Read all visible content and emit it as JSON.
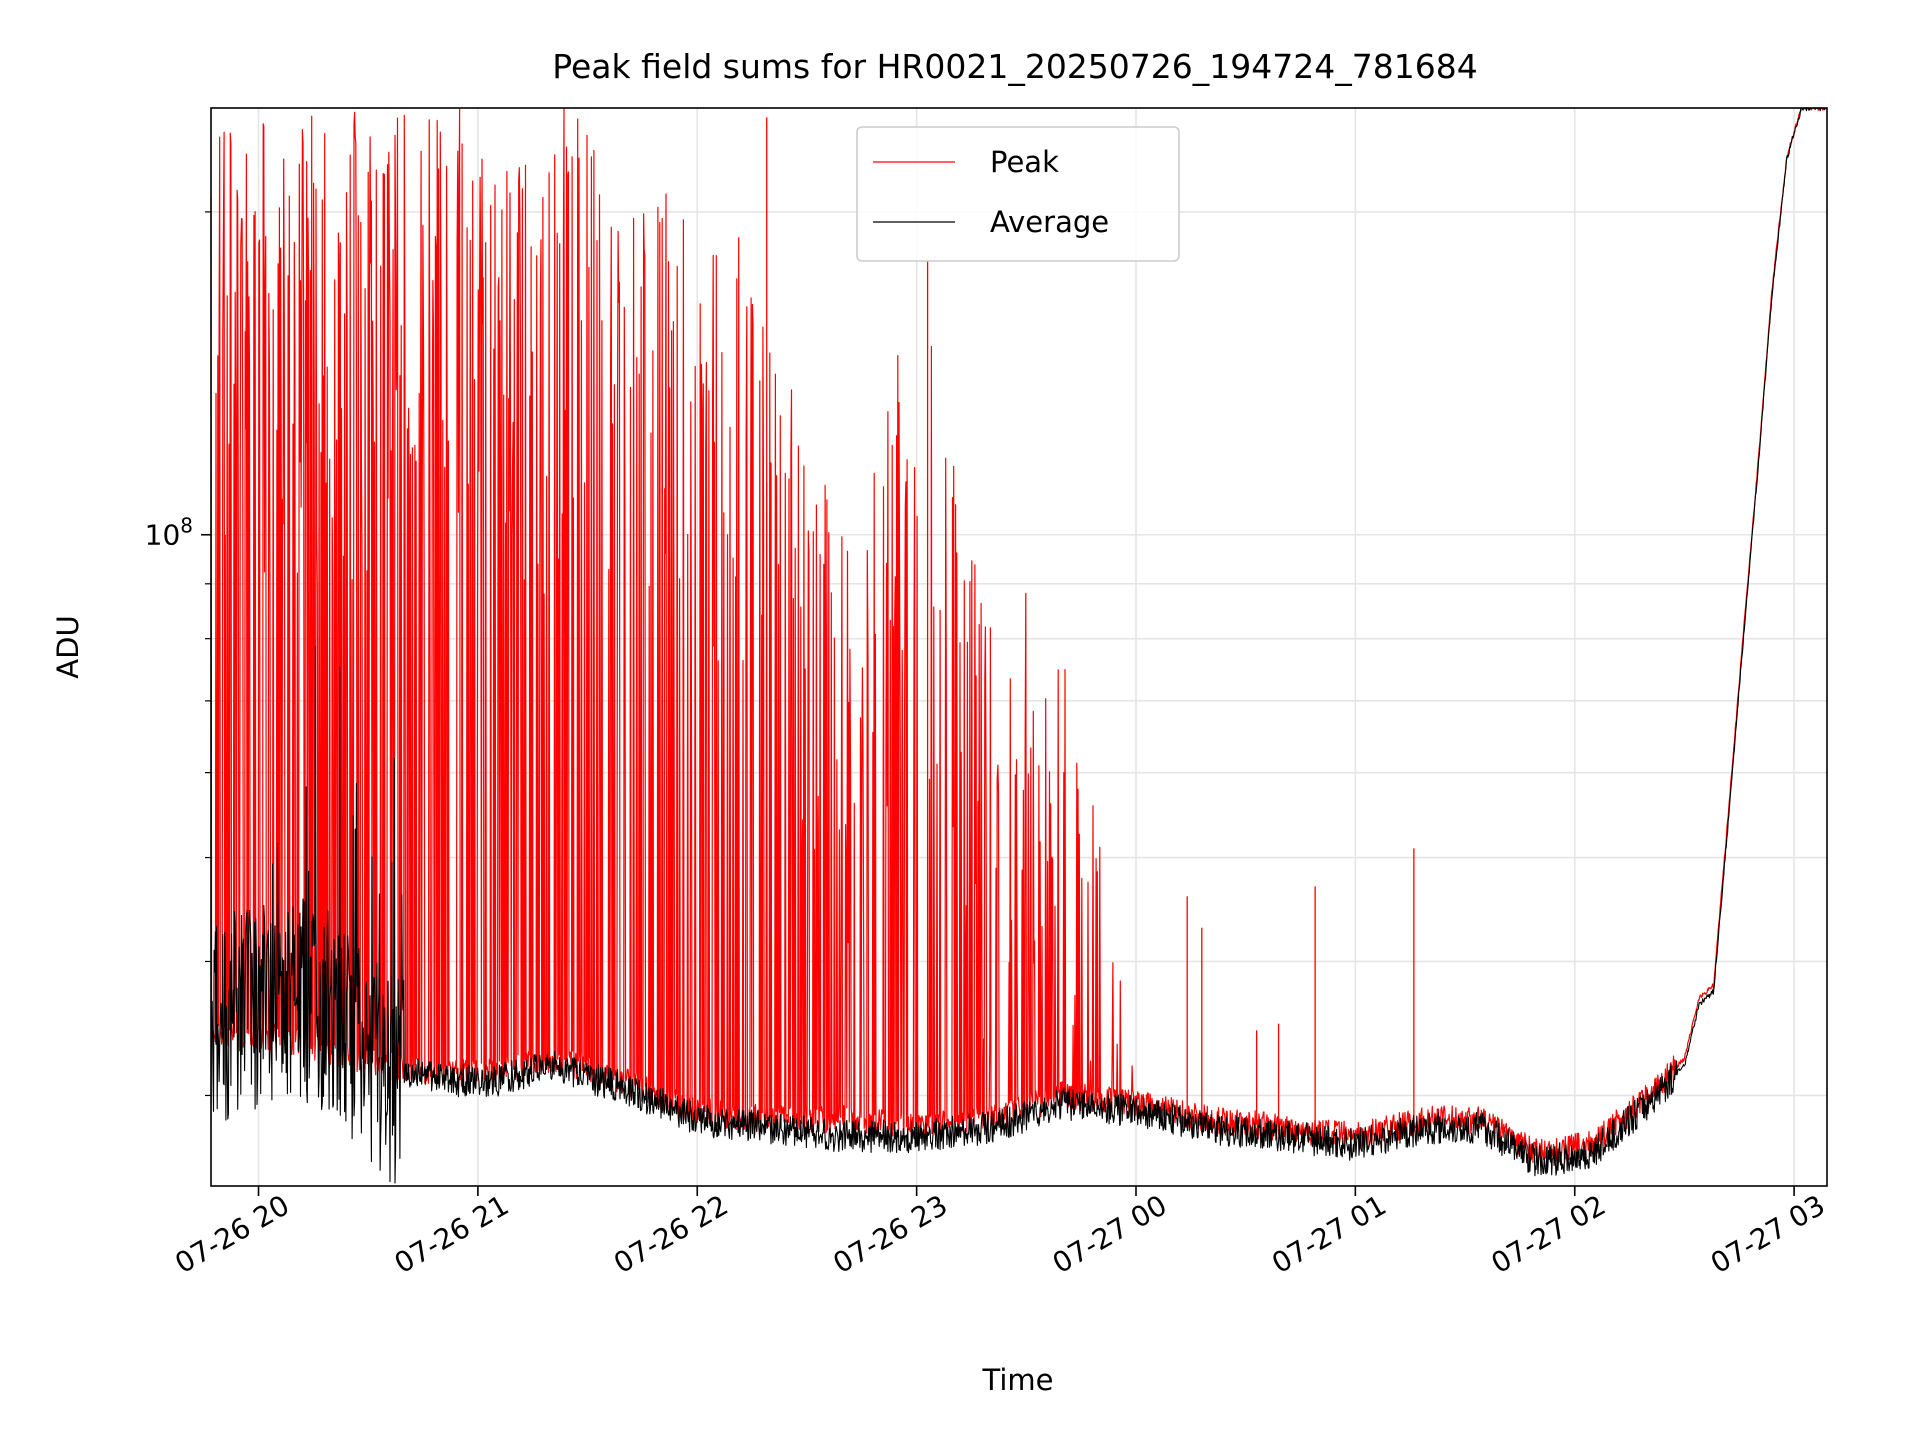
{
  "chart_data": {
    "type": "line",
    "title": "Peak field sums for HR0021_20250726_194724_781684",
    "xlabel": "Time",
    "ylabel": "ADU",
    "y_scale": "log",
    "ylim": [
      24700000,
      250000000
    ],
    "xlim": [
      "2025-07-26 19:47",
      "2025-07-27 03:09"
    ],
    "x_tick_labels": [
      "07-26 20",
      "07-26 21",
      "07-26 22",
      "07-26 23",
      "07-27 00",
      "07-27 01",
      "07-27 02",
      "07-27 03"
    ],
    "x_ticks": [
      "2025-07-26 20:00",
      "2025-07-26 21:00",
      "2025-07-26 22:00",
      "2025-07-26 23:00",
      "2025-07-27 00:00",
      "2025-07-27 01:00",
      "2025-07-27 02:00",
      "2025-07-27 03:00"
    ],
    "y_tick_labels": [
      {
        "base": "10",
        "exp": "8",
        "value": 100000000
      }
    ],
    "grid": true,
    "legend": {
      "position": "upper center",
      "entries": [
        "Peak",
        "Average"
      ]
    },
    "colors": {
      "Peak": "#ff0000",
      "Average": "#000000"
    },
    "series": [
      {
        "name": "Peak",
        "color": "#ff0000",
        "baseline": {
          "x": [
            "2025-07-26 19:47",
            "2025-07-26 20:05",
            "2025-07-26 20:20",
            "2025-07-26 20:35",
            "2025-07-26 20:50",
            "2025-07-26 21:05",
            "2025-07-26 21:20",
            "2025-07-26 21:40",
            "2025-07-26 22:00",
            "2025-07-26 22:20",
            "2025-07-26 22:40",
            "2025-07-26 23:00",
            "2025-07-26 23:20",
            "2025-07-26 23:40",
            "2025-07-27 00:00",
            "2025-07-27 00:20",
            "2025-07-27 00:40",
            "2025-07-27 01:00",
            "2025-07-27 01:20",
            "2025-07-27 01:35",
            "2025-07-27 01:50",
            "2025-07-27 02:05",
            "2025-07-27 02:20",
            "2025-07-27 02:30",
            "2025-07-27 02:34",
            "2025-07-27 02:38",
            "2025-07-27 02:42",
            "2025-07-27 02:46",
            "2025-07-27 02:50",
            "2025-07-27 02:54",
            "2025-07-27 02:58",
            "2025-07-27 03:02",
            "2025-07-27 03:09"
          ],
          "y": [
            34000000,
            34000000,
            33000000,
            32000000,
            31500000,
            31500000,
            32500000,
            31000000,
            29000000,
            28500000,
            28500000,
            28000000,
            28500000,
            30000000,
            29500000,
            28500000,
            28000000,
            27500000,
            28500000,
            28500000,
            26500000,
            27000000,
            30000000,
            32500000,
            37000000,
            38000000,
            55000000,
            80000000,
            115000000,
            170000000,
            225000000,
            250000000,
            250000000
          ]
        },
        "spike_envelope": {
          "x": [
            "2025-07-26 19:47",
            "2025-07-26 20:00",
            "2025-07-26 20:15",
            "2025-07-26 20:30",
            "2025-07-26 20:45",
            "2025-07-26 21:00",
            "2025-07-26 21:15",
            "2025-07-26 21:30",
            "2025-07-26 21:45",
            "2025-07-26 22:00",
            "2025-07-26 22:15",
            "2025-07-26 22:30",
            "2025-07-26 22:45",
            "2025-07-26 23:00",
            "2025-07-26 23:15",
            "2025-07-26 23:30",
            "2025-07-26 23:45",
            "2025-07-26 23:59"
          ],
          "y": [
            250000000,
            250000000,
            250000000,
            250000000,
            250000000,
            250000000,
            250000000,
            250000000,
            215000000,
            200000000,
            190000000,
            120000000,
            100000000,
            180000000,
            95000000,
            90000000,
            70000000,
            35000000
          ]
        },
        "highlighted_spikes": [
          {
            "x": "2025-07-26 22:19",
            "y": 245000000
          },
          {
            "x": "2025-07-26 23:03",
            "y": 180000000
          },
          {
            "x": "2025-07-27 00:14",
            "y": 46000000
          },
          {
            "x": "2025-07-27 00:18",
            "y": 43000000
          },
          {
            "x": "2025-07-27 00:33",
            "y": 34500000
          },
          {
            "x": "2025-07-27 00:39",
            "y": 35000000
          },
          {
            "x": "2025-07-27 00:49",
            "y": 47000000
          },
          {
            "x": "2025-07-27 01:16",
            "y": 51000000
          }
        ]
      },
      {
        "name": "Average",
        "color": "#000000",
        "x": [
          "2025-07-26 19:47",
          "2025-07-26 20:05",
          "2025-07-26 20:20",
          "2025-07-26 20:35",
          "2025-07-26 20:50",
          "2025-07-26 21:05",
          "2025-07-26 21:20",
          "2025-07-26 21:40",
          "2025-07-26 22:00",
          "2025-07-26 22:20",
          "2025-07-26 22:40",
          "2025-07-26 23:00",
          "2025-07-26 23:20",
          "2025-07-26 23:40",
          "2025-07-27 00:00",
          "2025-07-27 00:20",
          "2025-07-27 00:40",
          "2025-07-27 01:00",
          "2025-07-27 01:20",
          "2025-07-27 01:35",
          "2025-07-27 01:50",
          "2025-07-27 02:05",
          "2025-07-27 02:20",
          "2025-07-27 02:30",
          "2025-07-27 02:34",
          "2025-07-27 02:38",
          "2025-07-27 02:42",
          "2025-07-27 02:46",
          "2025-07-27 02:50",
          "2025-07-27 02:54",
          "2025-07-27 02:58",
          "2025-07-27 03:02",
          "2025-07-27 03:09"
        ],
        "y": [
          36000000,
          38000000,
          37000000,
          32000000,
          31000000,
          31000000,
          32000000,
          30500000,
          28500000,
          28000000,
          27500000,
          27500000,
          28000000,
          29500000,
          29000000,
          28000000,
          27500000,
          27000000,
          28000000,
          28000000,
          26000000,
          26500000,
          29500000,
          32000000,
          36500000,
          37500000,
          54000000,
          79000000,
          114000000,
          168000000,
          224000000,
          250000000,
          250000000
        ]
      }
    ]
  }
}
